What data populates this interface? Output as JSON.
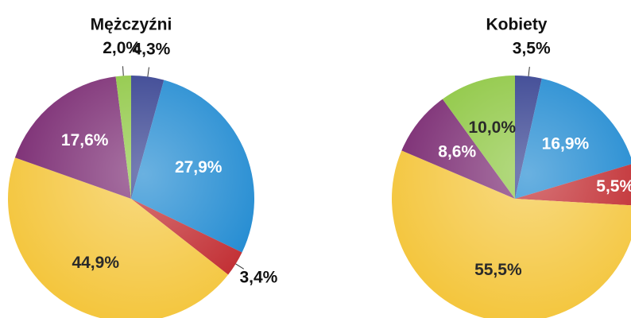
{
  "chart_data": [
    {
      "type": "pie",
      "title": "Mężczyźni",
      "values": [
        4.3,
        27.9,
        3.4,
        44.9,
        17.6,
        2.0
      ],
      "value_labels": [
        "4,3%",
        "27,9%",
        "3,4%",
        "44,9%",
        "17,6%",
        "2,0%"
      ],
      "colors": [
        "#2e3a8c",
        "#1a87d0",
        "#c0282d",
        "#f4c63e",
        "#7a2a72",
        "#8cc63f"
      ]
    },
    {
      "type": "pie",
      "title": "Kobiety",
      "values": [
        3.5,
        16.9,
        5.5,
        55.5,
        8.6,
        10.0
      ],
      "value_labels": [
        "3,5%",
        "16,9%",
        "5,5%",
        "55,5%",
        "8,6%",
        "10,0%"
      ],
      "colors": [
        "#2e3a8c",
        "#1a87d0",
        "#c0282d",
        "#f4c63e",
        "#7a2a72",
        "#8cc63f"
      ]
    }
  ]
}
